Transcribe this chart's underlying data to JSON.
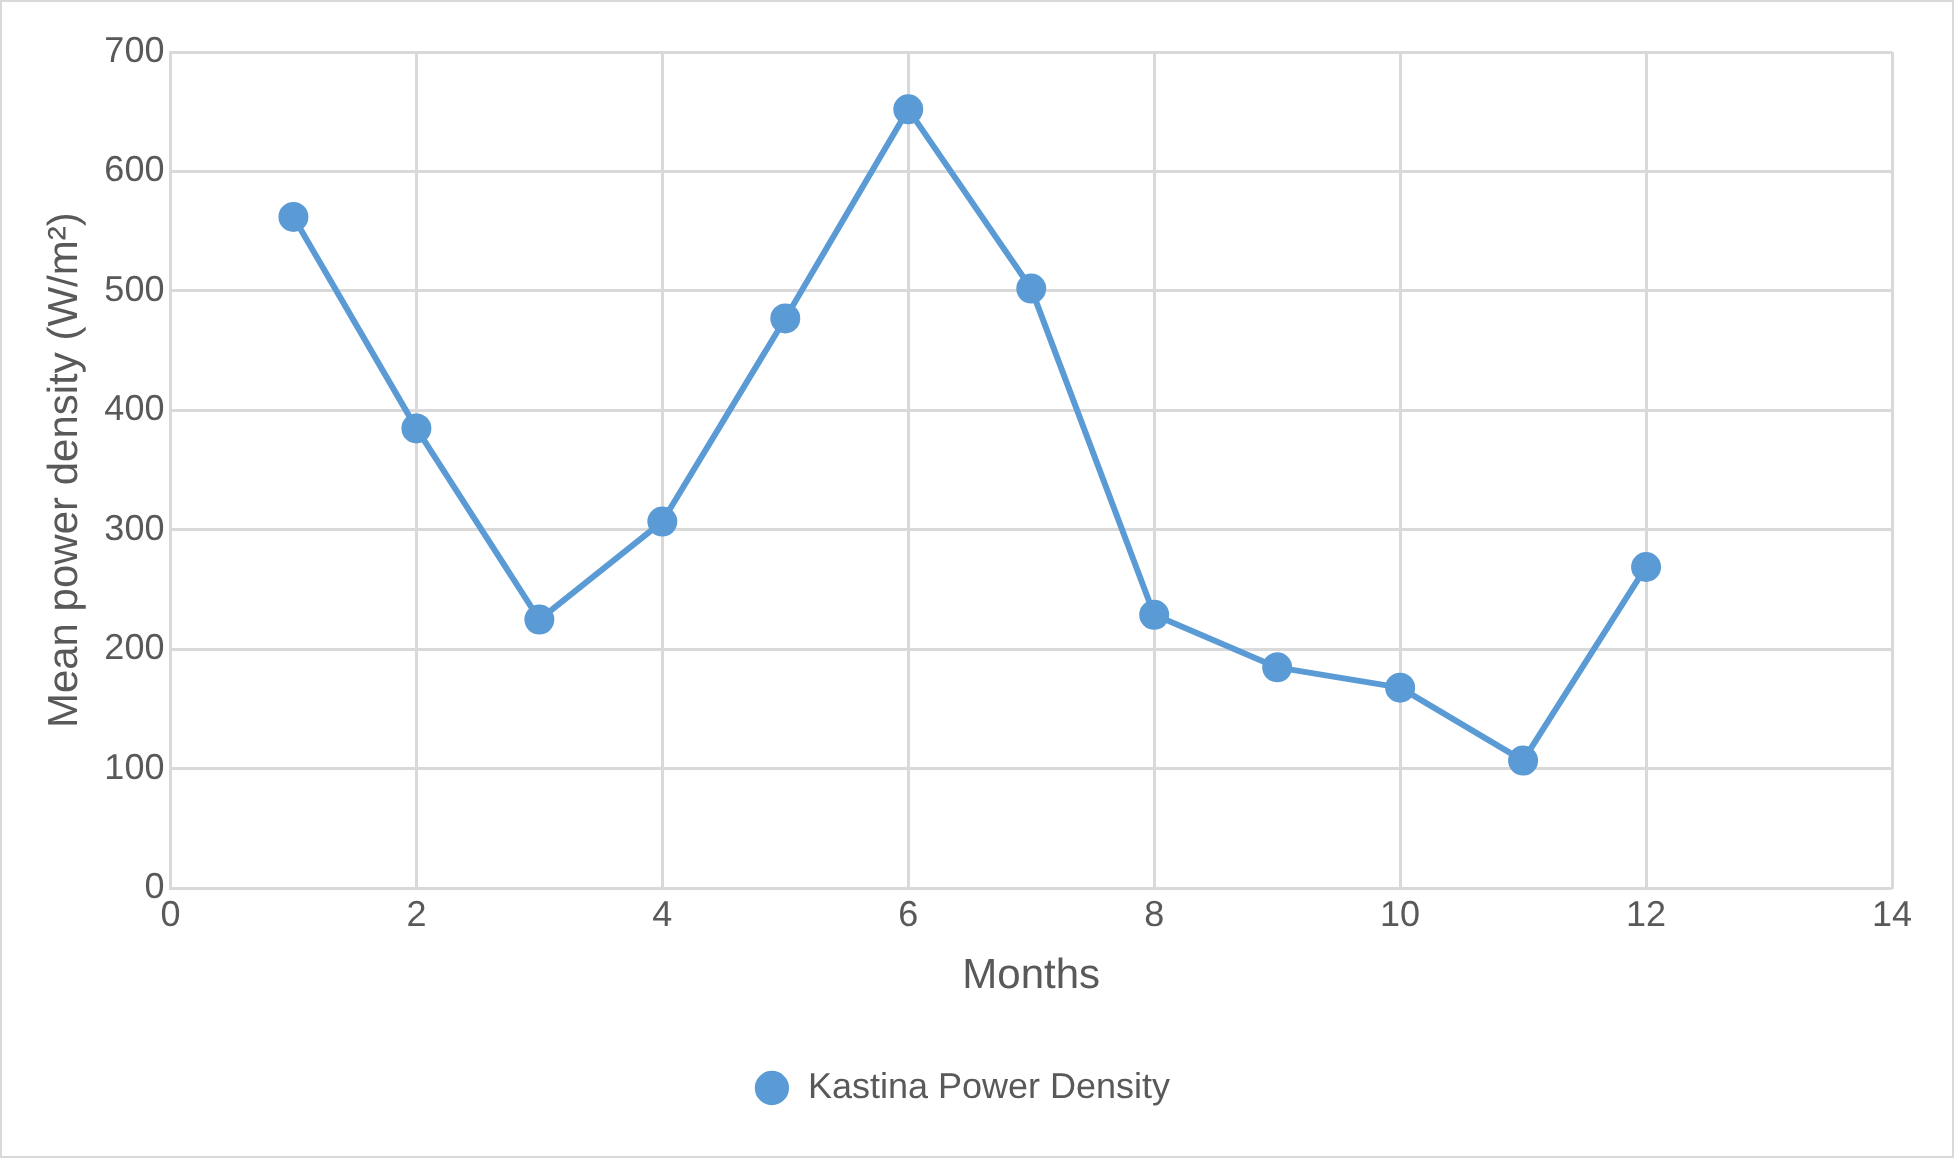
{
  "chart_data": {
    "type": "line",
    "xlabel": "Months",
    "ylabel": "Mean power density (W/m²)",
    "x": [
      1,
      2,
      3,
      4,
      5,
      6,
      7,
      8,
      9,
      10,
      11,
      12
    ],
    "series": [
      {
        "name": "Kastina Power Density",
        "color": "#5b9bd5",
        "values": [
          562,
          385,
          225,
          307,
          477,
          652,
          502,
          229,
          185,
          168,
          107,
          269
        ]
      }
    ],
    "xlim": [
      0,
      14
    ],
    "xticks": [
      0,
      2,
      4,
      6,
      8,
      10,
      12,
      14
    ],
    "ylim": [
      0,
      700
    ],
    "yticks": [
      0,
      100,
      200,
      300,
      400,
      500,
      600,
      700
    ],
    "grid": true,
    "legend": "bottom",
    "marker": "circle",
    "line_style": "solid"
  }
}
